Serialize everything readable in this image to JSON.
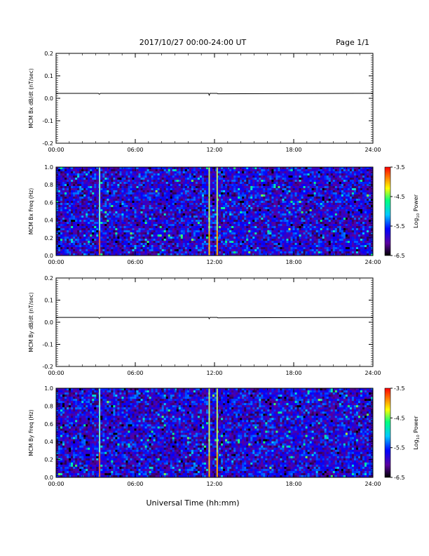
{
  "page": {
    "date_range": "2017/10/27  00:00-24:00 UT",
    "page_number": "Page 1/1",
    "xlabel": "Universal Time (hh:mm)"
  },
  "colorbar": {
    "label_prefix": "Log",
    "label_sub": "10",
    "label_suffix": " Power",
    "ticks": [
      "-3.5",
      "-4.5",
      "-5.5",
      "-6.5"
    ],
    "range": [
      -6.5,
      -3.5
    ],
    "colors": [
      "#000000",
      "#5a00a0",
      "#0000ff",
      "#00c8ff",
      "#00ff80",
      "#ffff00",
      "#ff8000",
      "#ff0000"
    ]
  },
  "chart_data": [
    {
      "type": "line",
      "ylabel": "MCM Bx dB/dt (nT/sec)",
      "x_ticks": [
        "00:00",
        "06:00",
        "12:00",
        "18:00",
        "24:00"
      ],
      "y_ticks": [
        "0.2",
        "0.1",
        "0.0",
        "-0.1",
        "-0.2"
      ],
      "xlim": [
        0,
        24
      ],
      "ylim": [
        -0.2,
        0.2
      ],
      "series": [
        {
          "x": [
            0,
            3.2,
            3.28,
            3.36,
            11.55,
            11.6,
            11.65,
            12.2,
            12.25,
            24
          ],
          "y": [
            0.022,
            0.022,
            0.018,
            0.022,
            0.022,
            0.014,
            0.022,
            0.022,
            0.02,
            0.022
          ]
        }
      ]
    },
    {
      "type": "heatmap",
      "ylabel": "MCM Bx Freq (Hz)",
      "x_ticks": [
        "00:00",
        "06:00",
        "12:00",
        "18:00",
        "24:00"
      ],
      "y_ticks": [
        "1.0",
        "0.8",
        "0.6",
        "0.4",
        "0.2",
        "0.0"
      ],
      "xlim": [
        0,
        24
      ],
      "ylim": [
        0,
        1.0
      ],
      "background_log_power": -5.8,
      "event_lines_hours": [
        3.3,
        11.6,
        12.2
      ]
    },
    {
      "type": "line",
      "ylabel": "MCM By dB/dt (nT/sec)",
      "x_ticks": [
        "00:00",
        "06:00",
        "12:00",
        "18:00",
        "24:00"
      ],
      "y_ticks": [
        "0.2",
        "0.1",
        "0.0",
        "-0.1",
        "-0.2"
      ],
      "xlim": [
        0,
        24
      ],
      "ylim": [
        -0.2,
        0.2
      ],
      "series": [
        {
          "x": [
            0,
            3.2,
            3.28,
            3.36,
            11.55,
            11.6,
            11.65,
            12.2,
            12.25,
            24
          ],
          "y": [
            0.022,
            0.022,
            0.018,
            0.022,
            0.022,
            0.016,
            0.022,
            0.022,
            0.02,
            0.022
          ]
        }
      ]
    },
    {
      "type": "heatmap",
      "ylabel": "MCM By Freq (Hz)",
      "x_ticks": [
        "00:00",
        "06:00",
        "12:00",
        "18:00",
        "24:00"
      ],
      "y_ticks": [
        "1.0",
        "0.8",
        "0.6",
        "0.4",
        "0.2",
        "0.0"
      ],
      "xlim": [
        0,
        24
      ],
      "ylim": [
        0,
        1.0
      ],
      "background_log_power": -5.8,
      "event_lines_hours": [
        3.3,
        11.6,
        12.2
      ]
    }
  ]
}
